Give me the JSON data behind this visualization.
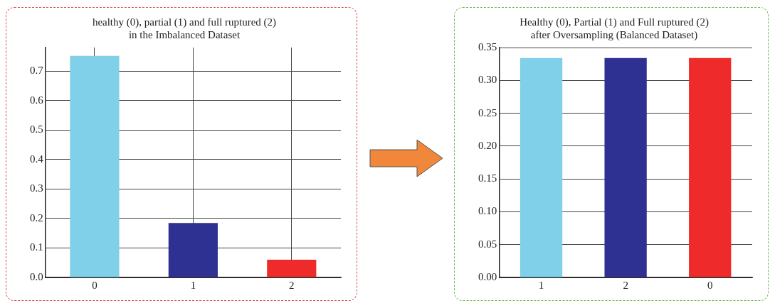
{
  "chart_data": [
    {
      "type": "bar",
      "title": "healthy (0), partial (1) and full ruptured (2) in the Imbalanced Dataset",
      "categories": [
        "0",
        "1",
        "2"
      ],
      "values": [
        0.752,
        0.185,
        0.06
      ],
      "colors": [
        "#7fd0e8",
        "#2e3192",
        "#ee2b2a"
      ],
      "ylim": [
        0,
        0.78
      ],
      "yticks": [
        {
          "value": 0,
          "label": "0.0"
        },
        0.1,
        0.2,
        0.3,
        0.4,
        0.5,
        0.6,
        0.7
      ],
      "grid": true
    },
    {
      "type": "bar",
      "title": "Healthy (0), Partial (1) and Full ruptured (2) after Oversampling (Balanced Dataset)",
      "categories": [
        "1",
        "2",
        "0"
      ],
      "values": [
        0.334,
        0.334,
        0.334
      ],
      "colors": [
        "#7fd0e8",
        "#2e3192",
        "#ee2b2a"
      ],
      "ylim": [
        0,
        0.35
      ],
      "yticks": [
        {
          "value": 0,
          "label": "0.00"
        },
        0.05,
        {
          "value": 0.1,
          "label": "0.10"
        },
        0.15,
        {
          "value": 0.2,
          "label": "0.20"
        },
        0.25,
        {
          "value": 0.3,
          "label": "0.30"
        },
        0.35
      ],
      "grid": "y"
    }
  ]
}
